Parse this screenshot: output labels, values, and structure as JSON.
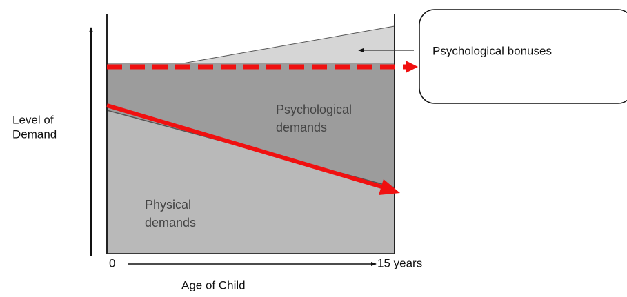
{
  "y_axis_label": [
    "Level of",
    "Demand"
  ],
  "x_axis_label": "Age of Child",
  "x_start": "0",
  "x_end": "15 years",
  "regions": {
    "psychological_demands": [
      "Psychological",
      "demands"
    ],
    "physical_demands": [
      "Physical",
      "demands"
    ]
  },
  "callout": "Psychological bonuses"
}
